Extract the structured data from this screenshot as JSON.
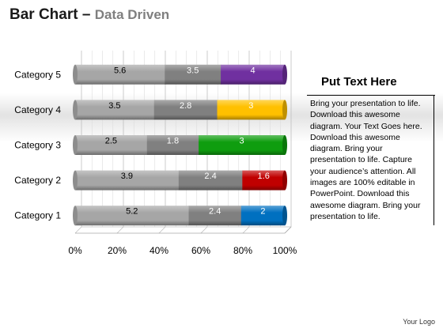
{
  "header": {
    "title": "Bar Chart –",
    "subtitle": "Data Driven"
  },
  "side_panel": {
    "heading": "Put Text Here",
    "body": "Bring your presentation to life. Download this awesome diagram. Your Text Goes here. Download this awesome diagram. Bring your presentation to life. Capture your audience’s attention. All images are 100% editable in PowerPoint. Download this awesome diagram. Bring your presentation to life."
  },
  "footer": {
    "text": "Your Logo"
  },
  "chart_data": {
    "type": "bar",
    "orientation": "horizontal",
    "stacked": "100%",
    "categories": [
      "Category 5",
      "Category 4",
      "Category 3",
      "Category 2",
      "Category 1"
    ],
    "series": [
      {
        "values": [
          5.6,
          3.5,
          2.5,
          3.9,
          5.2
        ],
        "color": "#a6a6a6",
        "label_color": "#000000"
      },
      {
        "values": [
          3.5,
          2.8,
          1.8,
          2.4,
          2.4
        ],
        "color": "#808080",
        "label_color": "#ffffff"
      },
      {
        "values": [
          4,
          3,
          3,
          1.6,
          2
        ],
        "colors": [
          "#7030a0",
          "#ffc000",
          "#0f9d0f",
          "#c00000",
          "#0070c0"
        ],
        "label_color": "#ffffff"
      }
    ],
    "xticks": [
      "0%",
      "20%",
      "40%",
      "60%",
      "80%",
      "100%"
    ],
    "xlim": [
      0,
      1
    ],
    "grid": true,
    "legend": "none"
  }
}
